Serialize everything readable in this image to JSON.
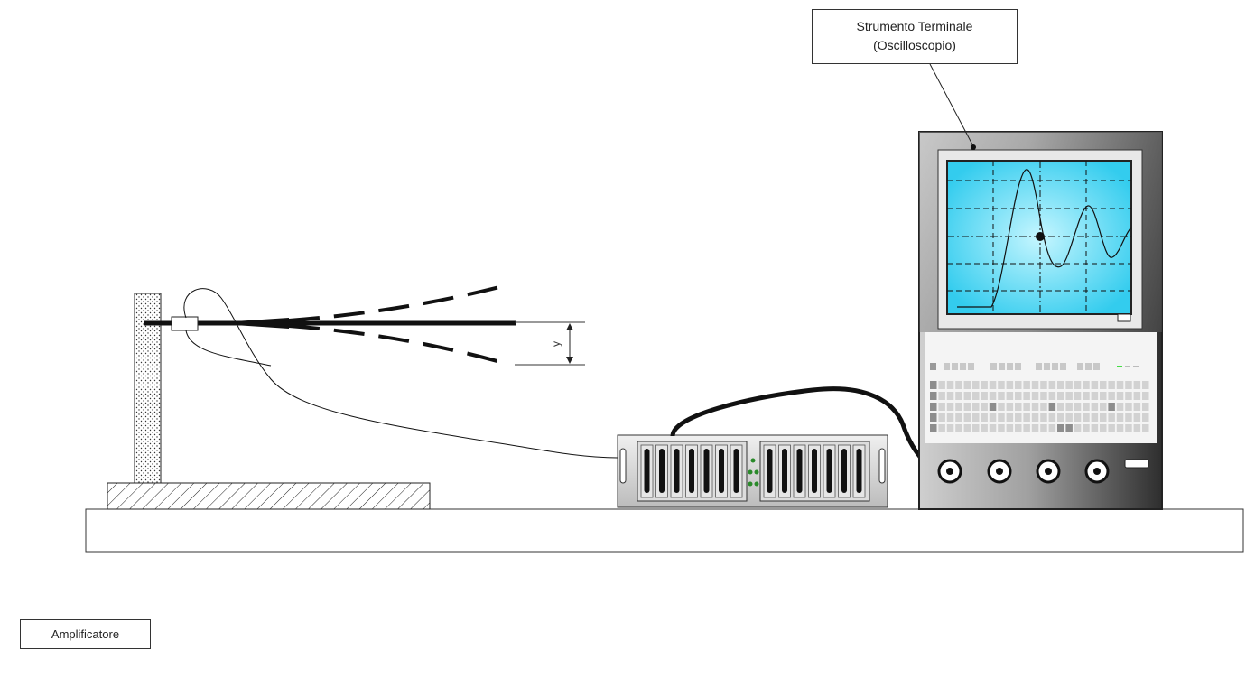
{
  "labels": {
    "terminal_line1": "Strumento Terminale",
    "terminal_line2": "(Oscilloscopio)",
    "amplifier": "Amplificatore",
    "deflection_symbol": "y"
  },
  "colors": {
    "screen": "#33ccee",
    "screen_center": "#b8f3ff",
    "cabinet_dark": "#3a3a3a",
    "cabinet_light": "#d8d8d8",
    "indicator": "#44dd44"
  },
  "icons": {
    "connectors": "bnc-connector-icon",
    "switch": "power-switch-icon"
  }
}
